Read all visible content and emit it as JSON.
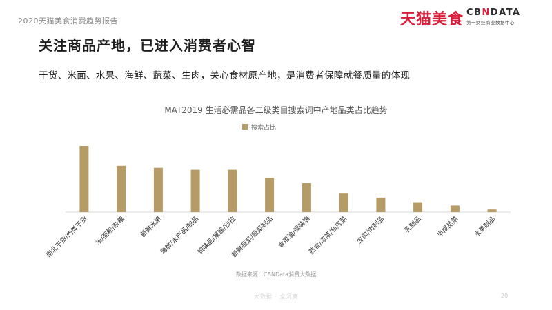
{
  "header": {
    "report_title": "2020天猫美食消费趋势报告",
    "brand_tmall": "天猫美食",
    "brand_cbn_prefix": "CB",
    "brand_cbn_mark": "N",
    "brand_cbn_suffix": "DATA",
    "brand_cbn_sub": "第一财经商业数据中心"
  },
  "slide": {
    "title": "关注商品产地，已进入消费者心智",
    "lead": "干货、米面、水果、海鲜、蔬菜、生肉，关心食材原产地，是消费者保障就餐质量的体现"
  },
  "footer": {
    "source": "数据来源：CBNData消费大数据",
    "watermark": "大数据 · 全洞察",
    "page_number": "20"
  },
  "colors": {
    "bar": "#b59b66",
    "axis": "#d9d9d9",
    "brand_red": "#d81e3a"
  },
  "chart_data": {
    "type": "bar",
    "title": "MAT2019 生活必需品各二级类目搜索词中产地品类占比趋势",
    "legend": {
      "position": "top-center"
    },
    "categories": [
      "南北干货/肉类干货",
      "米/面粉/杂粮",
      "新鲜水果",
      "海鲜/水产品/制品",
      "调味品/果酱/沙拉",
      "新鲜蔬菜/蔬菜制品",
      "食用油/调味油",
      "熟食/凉菜/私房菜",
      "生肉/肉制品",
      "乳制品",
      "半成品菜",
      "水果制品"
    ],
    "series": [
      {
        "name": "搜索占比",
        "values": [
          100,
          70,
          67,
          64,
          64,
          52,
          44,
          29,
          22,
          15,
          10,
          4
        ]
      }
    ],
    "ylim": [
      0,
      100
    ],
    "y_axis_visible": false,
    "grid": false
  }
}
